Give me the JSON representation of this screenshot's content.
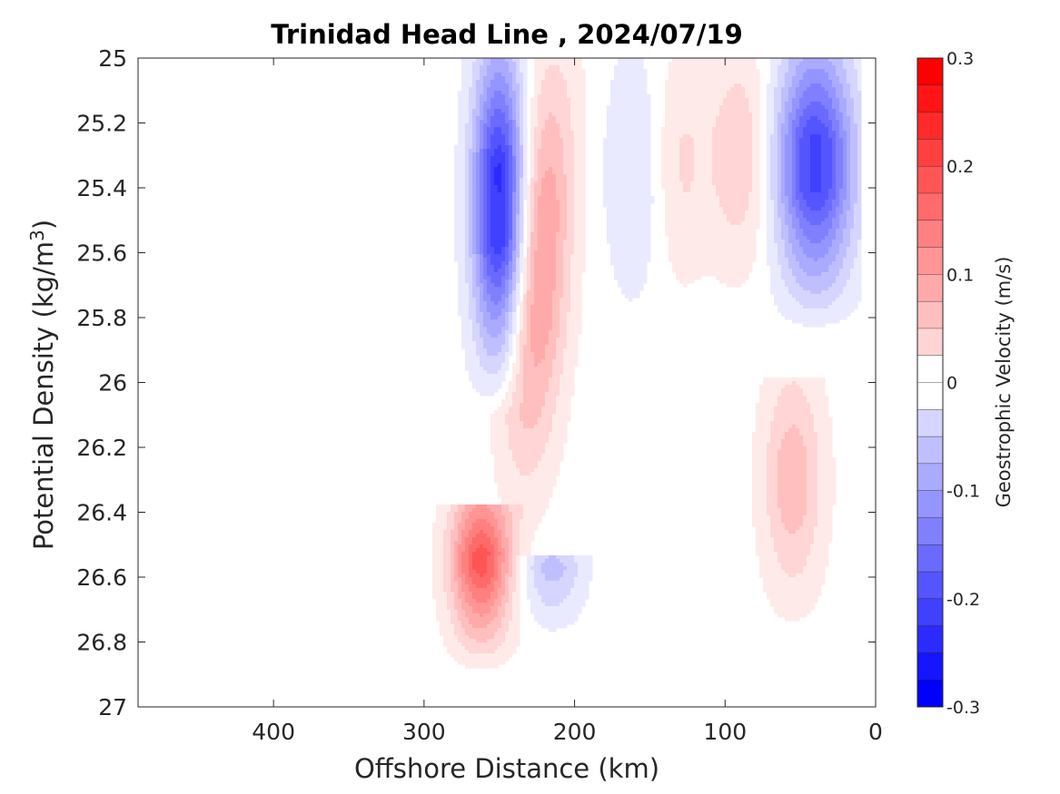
{
  "chart_data": {
    "type": "heatmap",
    "subtype": "filled-contour",
    "title": "Trinidad Head Line , 2024/07/19",
    "xlabel": "Offshore Distance (km)",
    "ylabel": "Potential Density (kg/m",
    "ylabel_superscript": "3",
    "ylabel_close": ")",
    "colorbar_label": "Geostrophic Velocity (m/s)",
    "xlim": [
      490,
      0
    ],
    "x_reversed": true,
    "ylim": [
      25,
      27
    ],
    "y_reversed": true,
    "xticks": [
      400,
      300,
      200,
      100,
      0
    ],
    "yticks": [
      25,
      25.2,
      25.4,
      25.6,
      25.8,
      26,
      26.2,
      26.4,
      26.6,
      26.8,
      27
    ],
    "ytick_labels": [
      "25",
      "25.2",
      "25.4",
      "25.6",
      "25.8",
      "26",
      "26.2",
      "26.4",
      "26.6",
      "26.8",
      "27"
    ],
    "colorbar": {
      "range": [
        -0.3,
        0.3
      ],
      "ticks": [
        0.3,
        0.2,
        0.1,
        0,
        -0.1,
        -0.2,
        -0.3
      ],
      "tick_labels": [
        "0.3",
        "0.2",
        "0.1",
        "0",
        "-0.1",
        "-0.2",
        "-0.3"
      ],
      "negative_color": "#0000ff",
      "positive_color": "#ff0000",
      "zero_color": "#ffffff"
    },
    "features": [
      {
        "name": "blue-core-offshore",
        "sign": -1,
        "peak": -0.25,
        "x_center": 250,
        "x_halfwidth": 17,
        "y_top": 25,
        "y_bottom": 26.1
      },
      {
        "name": "red-jet",
        "sign": 1,
        "peak": 0.12,
        "x_center_top": 215,
        "x_center_bottom": 235,
        "y_top": 25,
        "y_bottom": 26.5
      },
      {
        "name": "red-deep-core",
        "sign": 1,
        "peak": 0.2,
        "x_center": 262,
        "y_top": 26.4,
        "y_bottom": 26.9
      },
      {
        "name": "blue-deep-small",
        "sign": -1,
        "peak": -0.08,
        "x_center": 215,
        "y_top": 26.55,
        "y_bottom": 26.8
      },
      {
        "name": "blue-weak-mid",
        "sign": -1,
        "peak": -0.04,
        "x_center": 160,
        "y_top": 25,
        "y_bottom": 25.9
      },
      {
        "name": "red-weak-a",
        "sign": 1,
        "peak": 0.04,
        "x_center": 130,
        "y_top": 25,
        "y_bottom": 25.85
      },
      {
        "name": "red-weak-b",
        "sign": 1,
        "peak": 0.06,
        "x_center": 90,
        "y_top": 25,
        "y_bottom": 25.8
      },
      {
        "name": "blue-core-nearshore",
        "sign": -1,
        "peak": -0.22,
        "x_center": 40,
        "x_halfwidth": 25,
        "y_top": 25,
        "y_bottom": 25.85
      },
      {
        "name": "red-deep-nearshore",
        "sign": 1,
        "peak": 0.08,
        "x_center": 55,
        "y_top": 26.0,
        "y_bottom": 26.8
      }
    ]
  }
}
